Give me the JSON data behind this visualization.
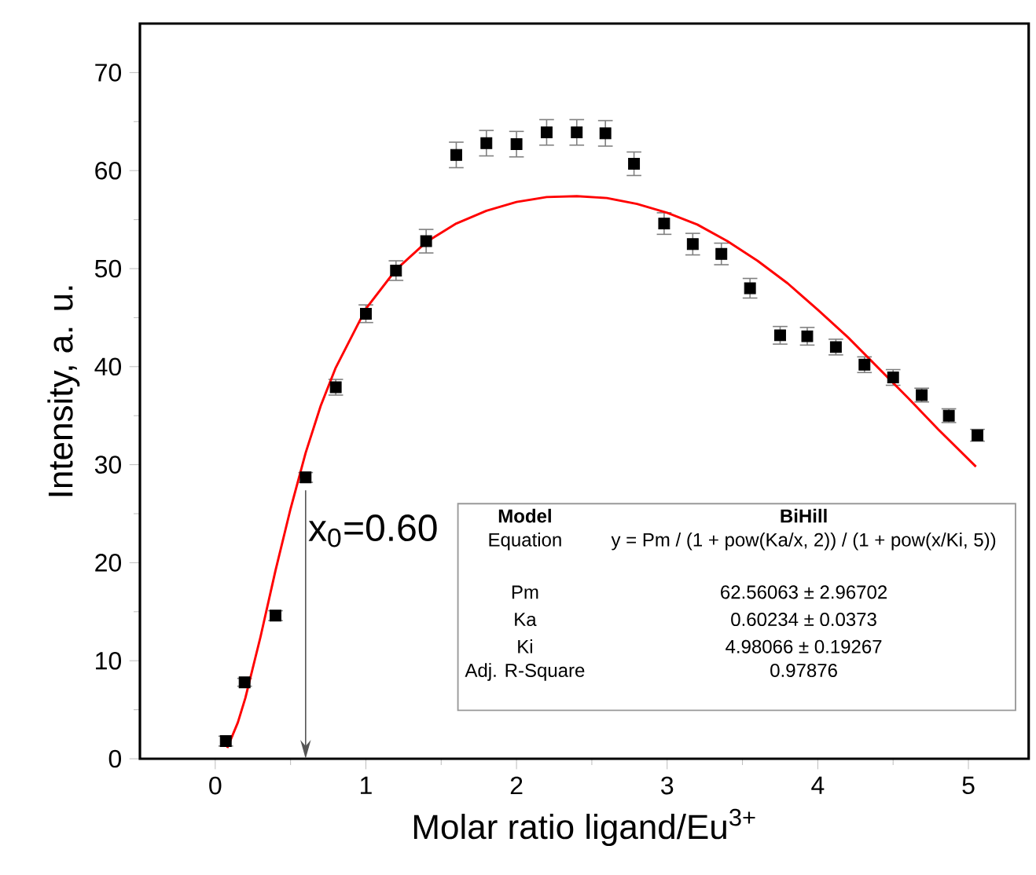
{
  "chart_data": {
    "type": "scatter",
    "xlabel": "Molar ratio ligand/Eu$^{3+}$",
    "ylabel": "Intensity, a. u.",
    "xlim": [
      -0.5,
      5.4
    ],
    "ylim": [
      0,
      75
    ],
    "xticks": [
      0,
      1,
      2,
      3,
      4,
      5
    ],
    "yticks": [
      0,
      10,
      20,
      30,
      40,
      50,
      60,
      70
    ],
    "grid": false,
    "ref_lines": [
      {
        "axis": "x",
        "value": 0.6,
        "label": "x$_{0}$=0.60",
        "color": "#555555"
      }
    ],
    "series": [
      {
        "color": "#000000",
        "marker": "square",
        "x": [
          0.07,
          0.195,
          0.4,
          0.6,
          0.8,
          1.0,
          1.2,
          1.4,
          1.6,
          1.8,
          2.0,
          2.2,
          2.4,
          2.59,
          2.78,
          2.98,
          3.17,
          3.36,
          3.55,
          3.75,
          3.93,
          4.12,
          4.31,
          4.5,
          4.69,
          4.87,
          5.06
        ],
        "values": [
          1.8,
          7.8,
          14.6,
          28.7,
          37.9,
          45.4,
          49.8,
          52.8,
          61.6,
          62.8,
          62.7,
          63.9,
          63.9,
          63.8,
          60.7,
          54.6,
          52.5,
          51.5,
          48.0,
          43.2,
          43.1,
          42.0,
          40.2,
          38.9,
          37.1,
          35.0,
          33.0
        ],
        "errors": [
          0.5,
          0.4,
          0.5,
          0.5,
          0.8,
          0.9,
          1.0,
          1.2,
          1.3,
          1.3,
          1.3,
          1.3,
          1.3,
          1.3,
          1.2,
          1.1,
          1.1,
          1.1,
          1.0,
          0.9,
          0.9,
          0.8,
          0.8,
          0.8,
          0.7,
          0.7,
          0.6
        ]
      },
      {
        "type": "line",
        "color": "#ff0000",
        "x": [
          0.08,
          0.15,
          0.2,
          0.3,
          0.4,
          0.5,
          0.6,
          0.7,
          0.8,
          1.0,
          1.2,
          1.4,
          1.6,
          1.8,
          2.0,
          2.2,
          2.4,
          2.6,
          2.8,
          3.0,
          3.2,
          3.4,
          3.6,
          3.8,
          4.0,
          4.2,
          4.4,
          4.6,
          4.8,
          5.05
        ],
        "values": [
          1.1,
          3.7,
          6.2,
          12.4,
          19.2,
          25.5,
          31.2,
          36.0,
          39.9,
          45.9,
          49.9,
          52.7,
          54.6,
          55.9,
          56.8,
          57.3,
          57.4,
          57.2,
          56.6,
          55.7,
          54.5,
          52.8,
          50.8,
          48.5,
          45.8,
          43.0,
          39.9,
          36.8,
          33.6,
          29.8
        ]
      }
    ],
    "annotations": [
      "Model",
      "BiHill",
      "Equation",
      "y = Pm / (1 + pow(Ka/x, 2)) / (1 + pow(x/Ki, 5))",
      "Pm",
      "62.56063 ± 2.96702",
      "Ka",
      "0.60234 ± 0.0373",
      "Ki",
      "4.98066 ± 0.19267",
      "Adj. R-Square",
      "0.97876"
    ]
  }
}
